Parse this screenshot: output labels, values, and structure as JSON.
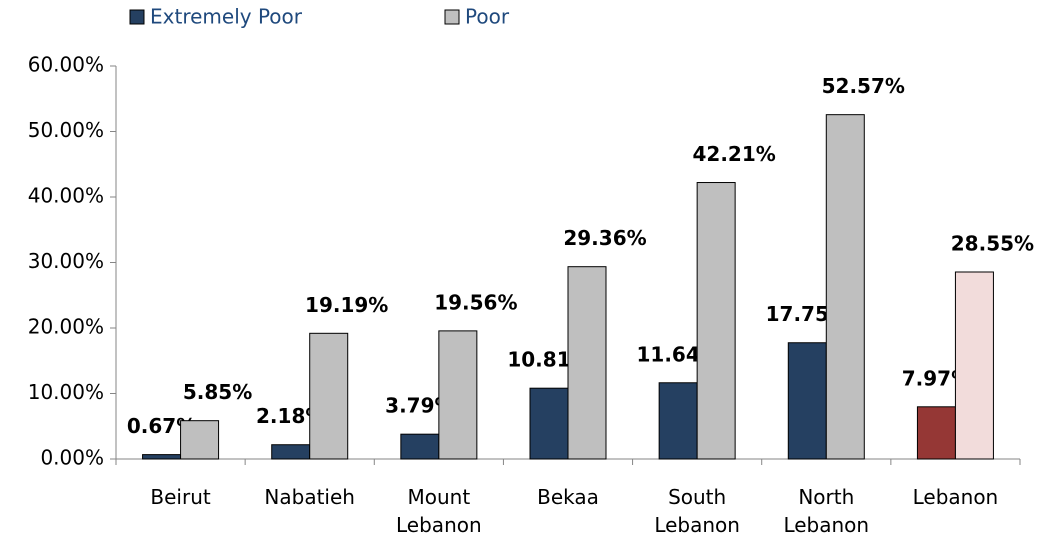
{
  "chart_data": {
    "type": "bar",
    "categories": [
      "Beirut",
      "Nabatieh",
      "Mount Lebanon",
      "Bekaa",
      "South Lebanon",
      "North Lebanon",
      "Lebanon"
    ],
    "series": [
      {
        "name": "Extremely Poor",
        "color": "#254061",
        "colors": [
          "#254061",
          "#254061",
          "#254061",
          "#254061",
          "#254061",
          "#254061",
          "#953735"
        ],
        "values": [
          0.67,
          2.18,
          3.79,
          10.81,
          11.64,
          17.75,
          7.97
        ],
        "value_labels": [
          "0.67%",
          "2.18%",
          "3.79%",
          "10.81%",
          "11.64%",
          "17.75%",
          "7.97%"
        ]
      },
      {
        "name": "Poor",
        "color": "#bfbfbf",
        "colors": [
          "#bfbfbf",
          "#bfbfbf",
          "#bfbfbf",
          "#bfbfbf",
          "#bfbfbf",
          "#bfbfbf",
          "#f2dcdb"
        ],
        "values": [
          5.85,
          19.19,
          19.56,
          29.36,
          42.21,
          52.57,
          28.55
        ],
        "value_labels": [
          "5.85%",
          "19.19%",
          "19.56%",
          "29.36%",
          "42.21%",
          "52.57%",
          "28.55%"
        ]
      }
    ],
    "ylim": [
      0,
      60
    ],
    "yticks": [
      {
        "value": 0,
        "label": "0.00%"
      },
      {
        "value": 10,
        "label": "10.00%"
      },
      {
        "value": 20,
        "label": "20.00%"
      },
      {
        "value": 30,
        "label": "30.00%"
      },
      {
        "value": 40,
        "label": "40.00%"
      },
      {
        "value": 50,
        "label": "50.00%"
      },
      {
        "value": 60,
        "label": "60.00%"
      }
    ],
    "grid": false,
    "legend": "top"
  }
}
